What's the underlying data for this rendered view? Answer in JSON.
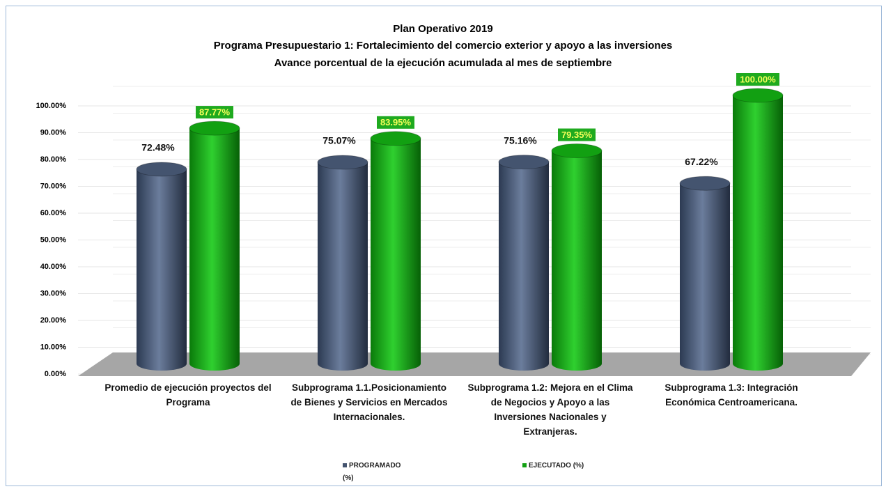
{
  "chart_data": {
    "type": "bar",
    "title": "Plan Operativo 2019",
    "subtitle": [
      "Programa Presupuestario  1: Fortalecimiento del comercio exterior y apoyo a las inversiones",
      "Avance porcentual de la ejecución acumulada al mes de septiembre"
    ],
    "categories": [
      "Promedio de ejecución proyectos del Programa",
      "Subprograma 1.1.Posicionamiento de Bienes y Servicios en Mercados Internacionales.",
      "Subprograma 1.2: Mejora en el Clima de Negocios y Apoyo a las Inversiones Nacionales y Extranjeras.",
      "Subprograma 1.3: Integración Económica Centroamericana."
    ],
    "series": [
      {
        "name": "PROGRAMADO (%)",
        "color": "#44546f",
        "values": [
          72.48,
          75.07,
          75.16,
          67.22
        ],
        "value_labels": [
          "72.48%",
          "75.07%",
          "75.16%",
          "67.22%"
        ]
      },
      {
        "name": "EJECUTADO (%)",
        "color": "#12a012",
        "values": [
          87.77,
          83.95,
          79.35,
          100.0
        ],
        "value_labels": [
          "87.77%",
          "83.95%",
          "79.35%",
          "100.00%"
        ]
      }
    ],
    "ylim": [
      0,
      100
    ],
    "yticks": [
      {
        "value": 0,
        "label": "0.00%"
      },
      {
        "value": 10,
        "label": "10.00%"
      },
      {
        "value": 20,
        "label": "20.00%"
      },
      {
        "value": 30,
        "label": "30.00%"
      },
      {
        "value": 40,
        "label": "40.00%"
      },
      {
        "value": 50,
        "label": "50.00%"
      },
      {
        "value": 60,
        "label": "60.00%"
      },
      {
        "value": 70,
        "label": "70.00%"
      },
      {
        "value": 80,
        "label": "80.00%"
      },
      {
        "value": 90,
        "label": "90.00%"
      },
      {
        "value": 100,
        "label": "100.00%"
      }
    ],
    "grid": true,
    "legend": "bottom"
  }
}
